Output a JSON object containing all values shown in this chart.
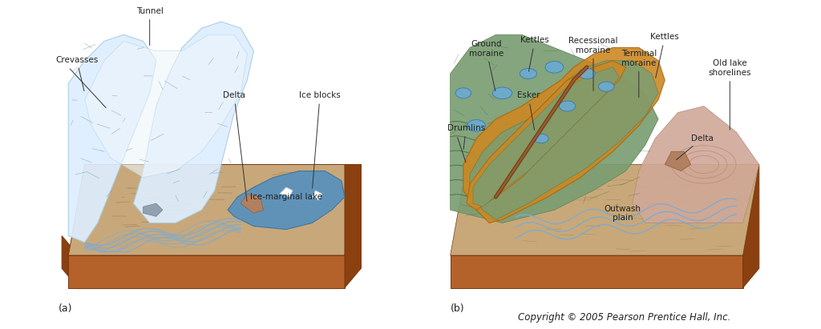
{
  "figsize": [
    10.24,
    4.11
  ],
  "dpi": 100,
  "background_color": "#ffffff",
  "label_a": "(a)",
  "label_b": "(b)",
  "copyright": "Copyright © 2005 Pearson Prentice Hall, Inc.",
  "colors": {
    "brown_base": "#b5622a",
    "brown_side": "#8B4010",
    "brown_dark": "#7a3810",
    "sand": "#c8a87a",
    "sand_light": "#d4b88a",
    "ice_fill": "#ddeeff",
    "ice_edge": "#aaccdd",
    "lake_blue": "#5590c0",
    "lake_edge": "#3a70a0",
    "green_moraine": "#7a9e72",
    "green_dark": "#5a7e52",
    "orange_moraine": "#cc8822",
    "orange_dark": "#aa6610",
    "kettle_blue": "#6aaBd5",
    "kettle_edge": "#3a7aaa",
    "river_blue": "#7aaBd5",
    "pink_lake": "#d4a898",
    "pink_dark": "#b88878",
    "outwash_tan": "#c8a878",
    "text_color": "#222222",
    "line_color": "#444444"
  }
}
